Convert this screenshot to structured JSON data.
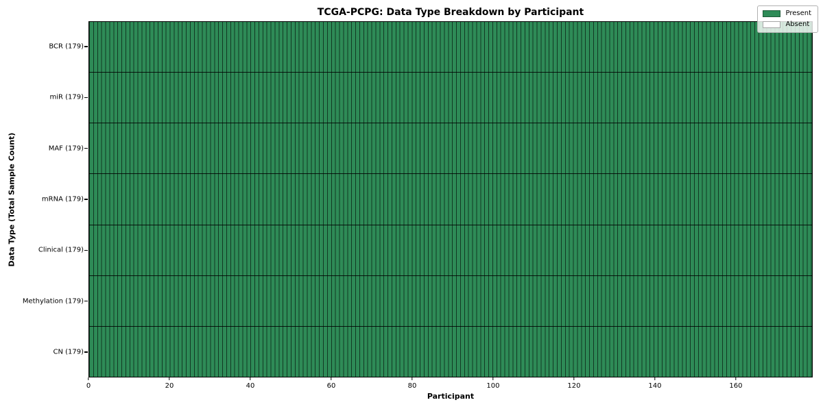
{
  "chart_data": {
    "type": "heatmap",
    "title": "TCGA-PCPG: Data Type Breakdown by Participant",
    "xlabel": "Participant",
    "ylabel": "Data Type (Total Sample Count)",
    "participant_count": 179,
    "x_range": [
      0,
      179
    ],
    "x_ticks": [
      0,
      20,
      40,
      60,
      80,
      100,
      120,
      140,
      160
    ],
    "rows": [
      {
        "name": "BCR",
        "total": 179,
        "display": "BCR (179)",
        "present": 179,
        "absent": 0
      },
      {
        "name": "miR",
        "total": 179,
        "display": "miR (179)",
        "present": 179,
        "absent": 0
      },
      {
        "name": "MAF",
        "total": 179,
        "display": "MAF (179)",
        "present": 179,
        "absent": 0
      },
      {
        "name": "mRNA",
        "total": 179,
        "display": "mRNA (179)",
        "present": 179,
        "absent": 0
      },
      {
        "name": "Clinical",
        "total": 179,
        "display": "Clinical (179)",
        "present": 179,
        "absent": 0
      },
      {
        "name": "Methylation",
        "total": 179,
        "display": "Methylation (179)",
        "present": 179,
        "absent": 0
      },
      {
        "name": "CN",
        "total": 179,
        "display": "CN (179)",
        "present": 179,
        "absent": 0
      }
    ],
    "legend": {
      "position": "upper right",
      "entries": [
        {
          "label": "Present",
          "color": "#2e8b57"
        },
        {
          "label": "Absent",
          "color": "#ffffff"
        }
      ]
    },
    "colors": {
      "present": "#2e8b57",
      "absent": "#ffffff",
      "cell_edge": "rgba(0,0,0,0.6)",
      "row_separator": "#000000"
    },
    "grid": true
  }
}
